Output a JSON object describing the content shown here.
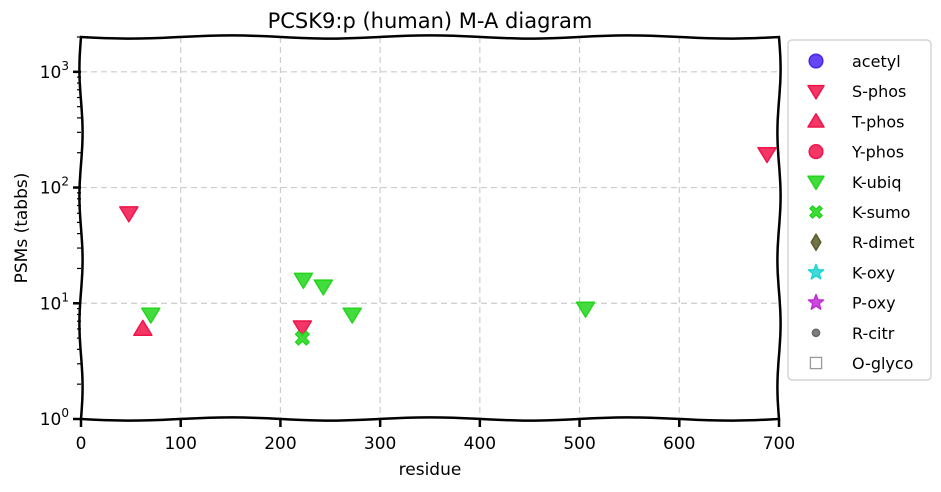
{
  "chart_data": {
    "type": "scatter",
    "title": "PCSK9:p (human) M-A diagram",
    "xlabel": "residue",
    "ylabel": "PSMs (tabbs)",
    "xlim": [
      0,
      700
    ],
    "ylim": [
      1,
      2000
    ],
    "yscale": "log",
    "grid": true,
    "legend_position": "right-outside",
    "x_ticks": [
      {
        "value": 0,
        "label": "0"
      },
      {
        "value": 100,
        "label": "100"
      },
      {
        "value": 200,
        "label": "200"
      },
      {
        "value": 300,
        "label": "300"
      },
      {
        "value": 400,
        "label": "400"
      },
      {
        "value": 500,
        "label": "500"
      },
      {
        "value": 600,
        "label": "600"
      },
      {
        "value": 700,
        "label": "700"
      }
    ],
    "y_ticks": [
      {
        "value": 1,
        "base": "10",
        "exp": "0"
      },
      {
        "value": 10,
        "base": "10",
        "exp": "1"
      },
      {
        "value": 100,
        "base": "10",
        "exp": "2"
      },
      {
        "value": 1000,
        "base": "10",
        "exp": "3"
      }
    ],
    "series": [
      {
        "name": "acetyl",
        "marker": "circle",
        "color": "#4b26f0",
        "points": []
      },
      {
        "name": "S-phos",
        "marker": "triangle-down",
        "color": "#f0144b",
        "points": [
          {
            "x": 48,
            "y": 60
          },
          {
            "x": 222,
            "y": 6.2
          },
          {
            "x": 688,
            "y": 195
          }
        ]
      },
      {
        "name": "T-phos",
        "marker": "triangle-up",
        "color": "#f0144b",
        "points": [
          {
            "x": 62,
            "y": 6
          }
        ]
      },
      {
        "name": "Y-phos",
        "marker": "circle",
        "color": "#f0144b",
        "points": []
      },
      {
        "name": "K-ubiq",
        "marker": "triangle-down",
        "color": "#22d61c",
        "points": [
          {
            "x": 70,
            "y": 8
          },
          {
            "x": 223,
            "y": 16
          },
          {
            "x": 243,
            "y": 14
          },
          {
            "x": 272,
            "y": 8
          },
          {
            "x": 506,
            "y": 9
          }
        ]
      },
      {
        "name": "K-sumo",
        "marker": "x",
        "color": "#22d61c",
        "points": [
          {
            "x": 222,
            "y": 5
          }
        ]
      },
      {
        "name": "R-dimet",
        "marker": "diamond",
        "color": "#5b5a28",
        "points": []
      },
      {
        "name": "K-oxy",
        "marker": "star",
        "color": "#20d4d4",
        "points": []
      },
      {
        "name": "P-oxy",
        "marker": "star",
        "color": "#c02bd4",
        "points": []
      },
      {
        "name": "R-citr",
        "marker": "dot",
        "color": "#666666",
        "points": []
      },
      {
        "name": "O-glyco",
        "marker": "square-open",
        "color": "#999999",
        "points": []
      }
    ]
  }
}
